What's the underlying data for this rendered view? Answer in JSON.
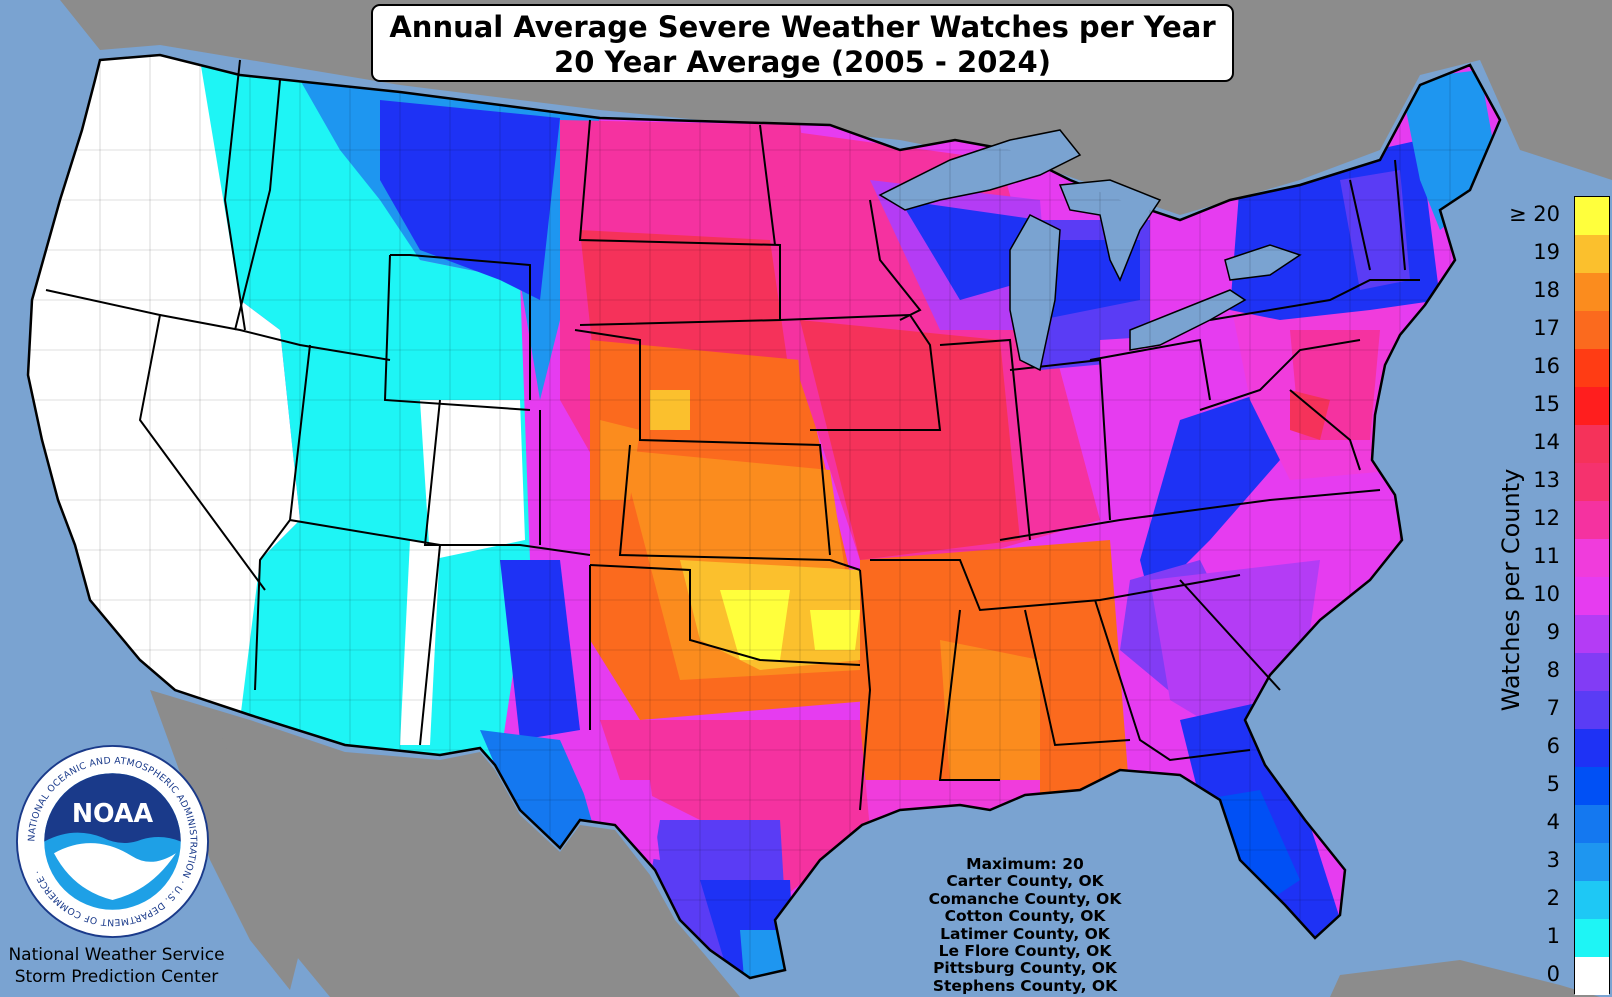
{
  "title": {
    "line1": "Annual Average Severe Weather Watches per Year",
    "line2": "20 Year Average (2005 - 2024)"
  },
  "legend": {
    "title": "Watches per County",
    "ticks": [
      "≥ 20",
      "19",
      "18",
      "17",
      "16",
      "15",
      "14",
      "13",
      "12",
      "11",
      "10",
      "9",
      "8",
      "7",
      "6",
      "5",
      "4",
      "3",
      "2",
      "1",
      "0"
    ],
    "colors": [
      "#ffff3c",
      "#fbc02d",
      "#fb8c1e",
      "#fb6a1e",
      "#ff3c14",
      "#ff1e1e",
      "#f5325a",
      "#f5326e",
      "#f532a0",
      "#f03cdc",
      "#e63cf0",
      "#b43cf5",
      "#823cf5",
      "#5a3cf5",
      "#1e32f5",
      "#0050f5",
      "#1478f0",
      "#1e96f0",
      "#1ec8f5",
      "#1ef5f5",
      "#ffffff"
    ]
  },
  "maximum": {
    "label": "Maximum: 20",
    "counties": [
      "Carter County, OK",
      "Comanche County, OK",
      "Cotton County, OK",
      "Latimer County, OK",
      "Le Flore County, OK",
      "Pittsburg County, OK",
      "Stephens County, OK"
    ]
  },
  "logo": {
    "center_text": "NOAA",
    "ring_text": "NATIONAL OCEANIC AND ATMOSPHERIC ADMINISTRATION · U.S. DEPARTMENT OF COMMERCE ·"
  },
  "credit": {
    "line1": "National Weather Service",
    "line2": "Storm Prediction Center"
  },
  "colors": {
    "ocean": "#7aa3d1",
    "land_outside": "#8c8c8c",
    "lakes": "#7aa3d1"
  }
}
